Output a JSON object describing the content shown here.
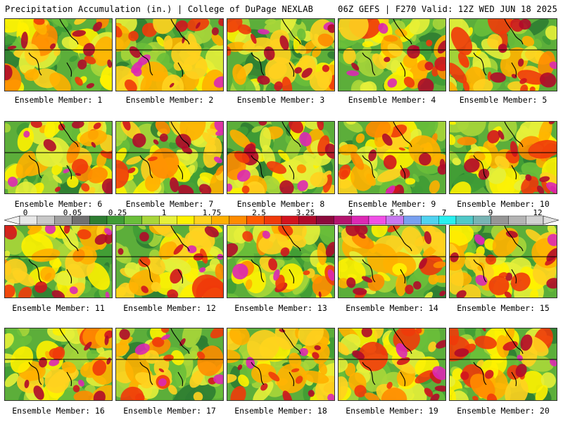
{
  "header": {
    "left": "Precipitation Accumulation (in.) | College of DuPage NEXLAB",
    "right": "06Z GEFS | F270 Valid: 12Z WED JUN 18 2025"
  },
  "panels": [
    {
      "label": "Ensemble Member: 1"
    },
    {
      "label": "Ensemble Member: 2"
    },
    {
      "label": "Ensemble Member: 3"
    },
    {
      "label": "Ensemble Member: 4"
    },
    {
      "label": "Ensemble Member: 5"
    },
    {
      "label": "Ensemble Member: 6"
    },
    {
      "label": "Ensemble Member: 7"
    },
    {
      "label": "Ensemble Member: 8"
    },
    {
      "label": "Ensemble Member: 9"
    },
    {
      "label": "Ensemble Member: 10"
    },
    {
      "label": "Ensemble Member: 11"
    },
    {
      "label": "Ensemble Member: 12"
    },
    {
      "label": "Ensemble Member: 13"
    },
    {
      "label": "Ensemble Member: 14"
    },
    {
      "label": "Ensemble Member: 15"
    },
    {
      "label": "Ensemble Member: 16"
    },
    {
      "label": "Ensemble Member: 17"
    },
    {
      "label": "Ensemble Member: 18"
    },
    {
      "label": "Ensemble Member: 19"
    },
    {
      "label": "Ensemble Member: 20"
    }
  ],
  "colorbar": {
    "tick_labels": [
      "0",
      "0.05",
      "0.25",
      "1",
      "1.75",
      "2.5",
      "3.25",
      "4",
      "5.5",
      "7",
      "9",
      "12"
    ],
    "colors": [
      "#e8e8e8",
      "#c8c8c8",
      "#a0a0a0",
      "#707070",
      "#2e7d32",
      "#3f9c35",
      "#6abf3a",
      "#a8d63a",
      "#e6f03a",
      "#fff200",
      "#ffd21f",
      "#ffb000",
      "#ff8c00",
      "#ff5a00",
      "#f03a0a",
      "#d2141e",
      "#b00a2a",
      "#8c0a3c",
      "#b4146e",
      "#dc28b4",
      "#f050e6",
      "#c878f0",
      "#78a0f0",
      "#50d2f0",
      "#28f0f0",
      "#50c8c8",
      "#78b4b4",
      "#969696",
      "#b4b4b4",
      "#d2d2d2"
    ]
  }
}
